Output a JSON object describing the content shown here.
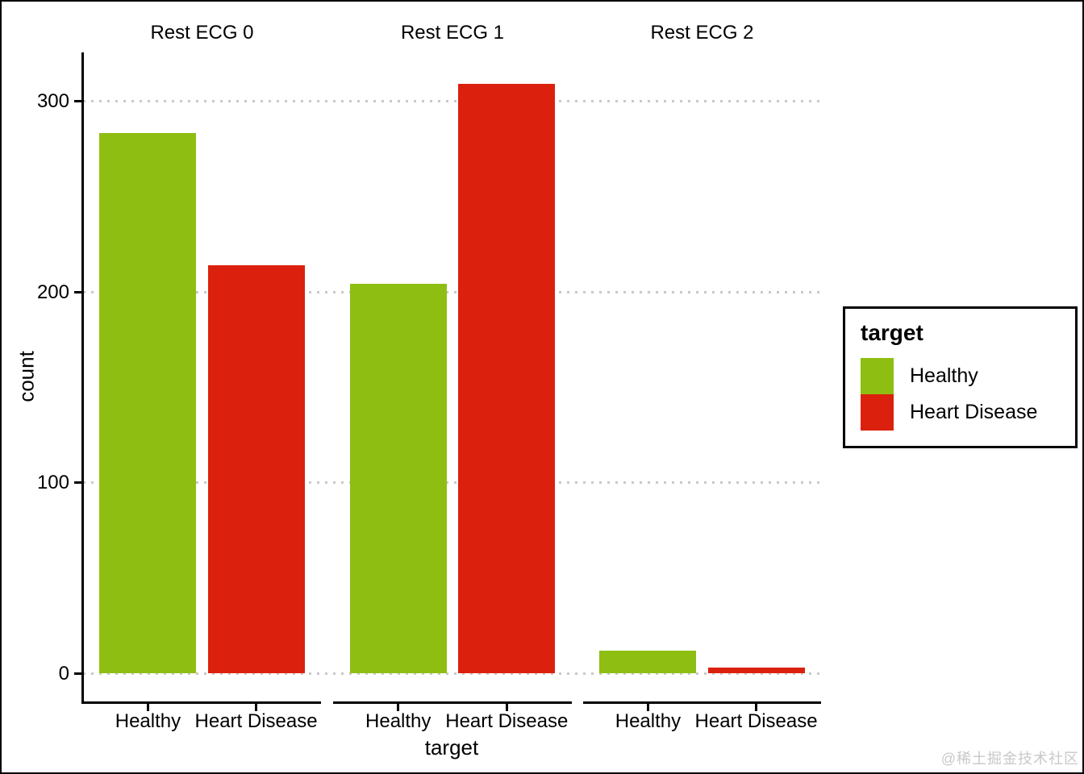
{
  "watermark": "@稀土掘金技术社区",
  "chart_data": {
    "type": "bar",
    "title": "",
    "xlabel": "target",
    "ylabel": "count",
    "categories": [
      "Healthy",
      "Heart Disease"
    ],
    "facets": [
      {
        "title": "Rest ECG 0",
        "values": [
          283,
          214
        ]
      },
      {
        "title": "Rest ECG 1",
        "values": [
          204,
          309
        ]
      },
      {
        "title": "Rest ECG 2",
        "values": [
          12,
          3
        ]
      }
    ],
    "colors": {
      "Healthy": "#8FBE12",
      "Heart Disease": "#DB210E"
    },
    "y_ticks": [
      0,
      100,
      200,
      300
    ],
    "ylim": [
      0,
      325
    ],
    "grid": {
      "horizontal": true,
      "style": "dotted",
      "color": "#C9C9C9"
    },
    "legend": {
      "title": "target",
      "entries": [
        "Healthy",
        "Heart Disease"
      ],
      "position": "right"
    }
  }
}
